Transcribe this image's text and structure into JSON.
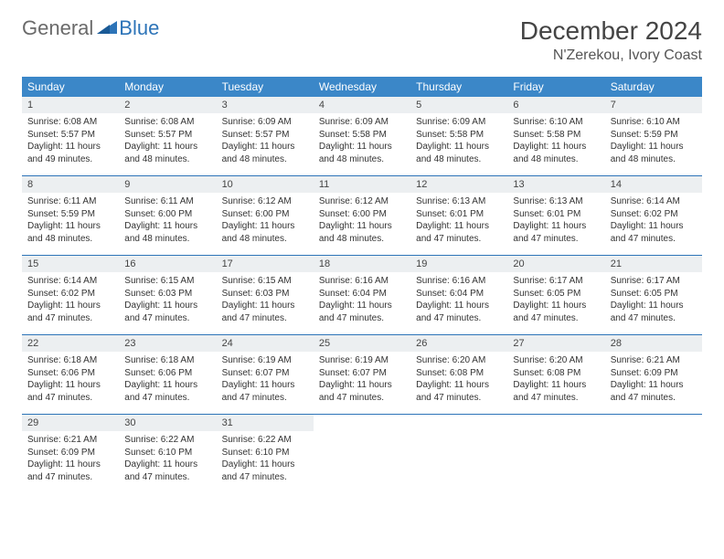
{
  "logo": {
    "text_general": "General",
    "text_blue": "Blue",
    "icon_color": "#2d74b8"
  },
  "header": {
    "month_title": "December 2024",
    "location": "N'Zerekou, Ivory Coast"
  },
  "colors": {
    "header_bg": "#3b87c8",
    "header_text": "#ffffff",
    "daynum_bg": "#eceff1",
    "week_divider": "#2d74b8",
    "body_text": "#333333",
    "title_text": "#444444"
  },
  "day_names": [
    "Sunday",
    "Monday",
    "Tuesday",
    "Wednesday",
    "Thursday",
    "Friday",
    "Saturday"
  ],
  "weeks": [
    [
      {
        "n": "1",
        "sr": "Sunrise: 6:08 AM",
        "ss": "Sunset: 5:57 PM",
        "dl": "Daylight: 11 hours and 49 minutes."
      },
      {
        "n": "2",
        "sr": "Sunrise: 6:08 AM",
        "ss": "Sunset: 5:57 PM",
        "dl": "Daylight: 11 hours and 48 minutes."
      },
      {
        "n": "3",
        "sr": "Sunrise: 6:09 AM",
        "ss": "Sunset: 5:57 PM",
        "dl": "Daylight: 11 hours and 48 minutes."
      },
      {
        "n": "4",
        "sr": "Sunrise: 6:09 AM",
        "ss": "Sunset: 5:58 PM",
        "dl": "Daylight: 11 hours and 48 minutes."
      },
      {
        "n": "5",
        "sr": "Sunrise: 6:09 AM",
        "ss": "Sunset: 5:58 PM",
        "dl": "Daylight: 11 hours and 48 minutes."
      },
      {
        "n": "6",
        "sr": "Sunrise: 6:10 AM",
        "ss": "Sunset: 5:58 PM",
        "dl": "Daylight: 11 hours and 48 minutes."
      },
      {
        "n": "7",
        "sr": "Sunrise: 6:10 AM",
        "ss": "Sunset: 5:59 PM",
        "dl": "Daylight: 11 hours and 48 minutes."
      }
    ],
    [
      {
        "n": "8",
        "sr": "Sunrise: 6:11 AM",
        "ss": "Sunset: 5:59 PM",
        "dl": "Daylight: 11 hours and 48 minutes."
      },
      {
        "n": "9",
        "sr": "Sunrise: 6:11 AM",
        "ss": "Sunset: 6:00 PM",
        "dl": "Daylight: 11 hours and 48 minutes."
      },
      {
        "n": "10",
        "sr": "Sunrise: 6:12 AM",
        "ss": "Sunset: 6:00 PM",
        "dl": "Daylight: 11 hours and 48 minutes."
      },
      {
        "n": "11",
        "sr": "Sunrise: 6:12 AM",
        "ss": "Sunset: 6:00 PM",
        "dl": "Daylight: 11 hours and 48 minutes."
      },
      {
        "n": "12",
        "sr": "Sunrise: 6:13 AM",
        "ss": "Sunset: 6:01 PM",
        "dl": "Daylight: 11 hours and 47 minutes."
      },
      {
        "n": "13",
        "sr": "Sunrise: 6:13 AM",
        "ss": "Sunset: 6:01 PM",
        "dl": "Daylight: 11 hours and 47 minutes."
      },
      {
        "n": "14",
        "sr": "Sunrise: 6:14 AM",
        "ss": "Sunset: 6:02 PM",
        "dl": "Daylight: 11 hours and 47 minutes."
      }
    ],
    [
      {
        "n": "15",
        "sr": "Sunrise: 6:14 AM",
        "ss": "Sunset: 6:02 PM",
        "dl": "Daylight: 11 hours and 47 minutes."
      },
      {
        "n": "16",
        "sr": "Sunrise: 6:15 AM",
        "ss": "Sunset: 6:03 PM",
        "dl": "Daylight: 11 hours and 47 minutes."
      },
      {
        "n": "17",
        "sr": "Sunrise: 6:15 AM",
        "ss": "Sunset: 6:03 PM",
        "dl": "Daylight: 11 hours and 47 minutes."
      },
      {
        "n": "18",
        "sr": "Sunrise: 6:16 AM",
        "ss": "Sunset: 6:04 PM",
        "dl": "Daylight: 11 hours and 47 minutes."
      },
      {
        "n": "19",
        "sr": "Sunrise: 6:16 AM",
        "ss": "Sunset: 6:04 PM",
        "dl": "Daylight: 11 hours and 47 minutes."
      },
      {
        "n": "20",
        "sr": "Sunrise: 6:17 AM",
        "ss": "Sunset: 6:05 PM",
        "dl": "Daylight: 11 hours and 47 minutes."
      },
      {
        "n": "21",
        "sr": "Sunrise: 6:17 AM",
        "ss": "Sunset: 6:05 PM",
        "dl": "Daylight: 11 hours and 47 minutes."
      }
    ],
    [
      {
        "n": "22",
        "sr": "Sunrise: 6:18 AM",
        "ss": "Sunset: 6:06 PM",
        "dl": "Daylight: 11 hours and 47 minutes."
      },
      {
        "n": "23",
        "sr": "Sunrise: 6:18 AM",
        "ss": "Sunset: 6:06 PM",
        "dl": "Daylight: 11 hours and 47 minutes."
      },
      {
        "n": "24",
        "sr": "Sunrise: 6:19 AM",
        "ss": "Sunset: 6:07 PM",
        "dl": "Daylight: 11 hours and 47 minutes."
      },
      {
        "n": "25",
        "sr": "Sunrise: 6:19 AM",
        "ss": "Sunset: 6:07 PM",
        "dl": "Daylight: 11 hours and 47 minutes."
      },
      {
        "n": "26",
        "sr": "Sunrise: 6:20 AM",
        "ss": "Sunset: 6:08 PM",
        "dl": "Daylight: 11 hours and 47 minutes."
      },
      {
        "n": "27",
        "sr": "Sunrise: 6:20 AM",
        "ss": "Sunset: 6:08 PM",
        "dl": "Daylight: 11 hours and 47 minutes."
      },
      {
        "n": "28",
        "sr": "Sunrise: 6:21 AM",
        "ss": "Sunset: 6:09 PM",
        "dl": "Daylight: 11 hours and 47 minutes."
      }
    ],
    [
      {
        "n": "29",
        "sr": "Sunrise: 6:21 AM",
        "ss": "Sunset: 6:09 PM",
        "dl": "Daylight: 11 hours and 47 minutes."
      },
      {
        "n": "30",
        "sr": "Sunrise: 6:22 AM",
        "ss": "Sunset: 6:10 PM",
        "dl": "Daylight: 11 hours and 47 minutes."
      },
      {
        "n": "31",
        "sr": "Sunrise: 6:22 AM",
        "ss": "Sunset: 6:10 PM",
        "dl": "Daylight: 11 hours and 47 minutes."
      },
      null,
      null,
      null,
      null
    ]
  ]
}
